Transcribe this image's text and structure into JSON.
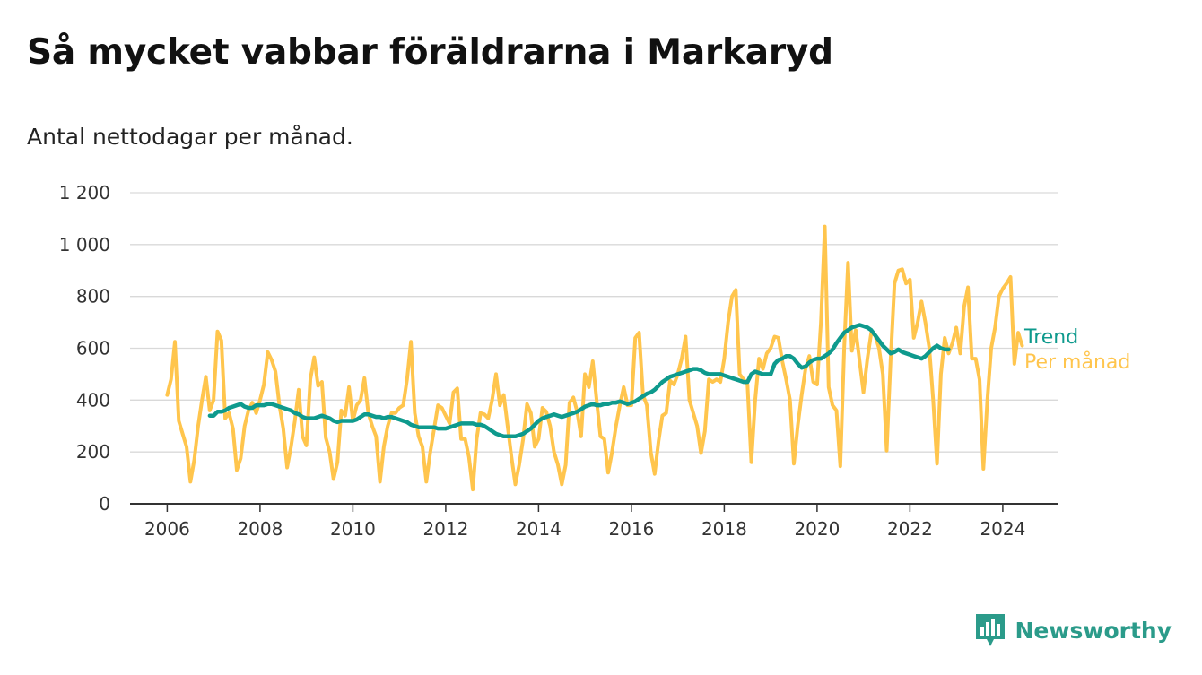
{
  "title": "Så mycket vabbar föräldrarna i Markaryd",
  "subtitle": "Antal nettodagar per månad.",
  "brand": "Newsworthy",
  "colors": {
    "monthly": "#ffc54d",
    "trend": "#0e9a8d",
    "brand": "#2b9b8a",
    "grid": "#d9d9d9",
    "axis": "#333333"
  },
  "icons": {
    "brand_logo": "bar-chart-speech-bubble-icon"
  },
  "chart_data": {
    "type": "line",
    "title": "Så mycket vabbar föräldrarna i Markaryd",
    "subtitle": "Antal nettodagar per månad.",
    "ylim": [
      0,
      1200
    ],
    "xlim": [
      2005.2,
      2025.2
    ],
    "y_ticks": [
      0,
      200,
      400,
      600,
      800,
      1000,
      1200
    ],
    "y_tick_labels": [
      "0",
      "200",
      "400",
      "600",
      "800",
      "1 000",
      "1 200"
    ],
    "x_ticks": [
      2006,
      2008,
      2010,
      2012,
      2014,
      2016,
      2018,
      2020,
      2022,
      2024
    ],
    "x_tick_labels": [
      "2006",
      "2008",
      "2010",
      "2012",
      "2014",
      "2016",
      "2018",
      "2020",
      "2022",
      "2024"
    ],
    "grid": true,
    "legend": "direct labels at right end of lines",
    "series": [
      {
        "name": "Per månad",
        "color": "#ffc54d",
        "start": 2006.0,
        "step_months": 1,
        "values": [
          420,
          480,
          625,
          320,
          270,
          220,
          85,
          170,
          300,
          400,
          490,
          360,
          400,
          665,
          630,
          330,
          350,
          290,
          130,
          175,
          300,
          360,
          390,
          350,
          400,
          460,
          585,
          555,
          510,
          380,
          290,
          140,
          220,
          320,
          440,
          260,
          225,
          480,
          565,
          455,
          470,
          255,
          200,
          95,
          160,
          360,
          340,
          450,
          320,
          380,
          400,
          485,
          350,
          300,
          260,
          85,
          220,
          300,
          350,
          350,
          370,
          380,
          480,
          625,
          350,
          260,
          220,
          85,
          200,
          290,
          380,
          370,
          340,
          310,
          430,
          445,
          250,
          250,
          180,
          55,
          250,
          350,
          345,
          330,
          400,
          500,
          380,
          420,
          300,
          180,
          75,
          150,
          250,
          385,
          350,
          220,
          250,
          370,
          355,
          300,
          200,
          150,
          75,
          150,
          390,
          410,
          355,
          260,
          500,
          450,
          550,
          400,
          260,
          250,
          120,
          200,
          300,
          380,
          450,
          380,
          380,
          640,
          660,
          420,
          380,
          200,
          115,
          240,
          340,
          350,
          475,
          460,
          500,
          560,
          645,
          400,
          350,
          300,
          195,
          280,
          480,
          470,
          480,
          470,
          560,
          700,
          800,
          825,
          500,
          480,
          460,
          160,
          400,
          560,
          520,
          580,
          600,
          645,
          640,
          550,
          480,
          400,
          155,
          300,
          420,
          520,
          570,
          470,
          460,
          700,
          1070,
          450,
          380,
          360,
          145,
          600,
          930,
          590,
          670,
          550,
          430,
          560,
          660,
          650,
          600,
          500,
          205,
          550,
          850,
          900,
          905,
          850,
          865,
          640,
          700,
          780,
          700,
          600,
          400,
          155,
          500,
          640,
          580,
          620,
          680,
          580,
          760,
          835,
          560,
          560,
          480,
          135,
          400,
          600,
          680,
          800,
          830,
          850,
          875,
          540,
          660,
          610
        ]
      },
      {
        "name": "Trend",
        "color": "#0e9a8d",
        "start": 2006.917,
        "step_months": 1,
        "values": [
          340,
          340,
          355,
          355,
          360,
          370,
          375,
          380,
          385,
          375,
          370,
          370,
          380,
          380,
          380,
          385,
          385,
          380,
          375,
          370,
          365,
          360,
          350,
          345,
          335,
          330,
          330,
          330,
          335,
          340,
          335,
          330,
          320,
          315,
          320,
          320,
          320,
          320,
          325,
          335,
          345,
          345,
          340,
          335,
          335,
          330,
          335,
          335,
          330,
          325,
          320,
          315,
          305,
          300,
          295,
          295,
          295,
          295,
          295,
          290,
          290,
          290,
          295,
          300,
          305,
          310,
          310,
          310,
          310,
          305,
          305,
          300,
          290,
          280,
          270,
          265,
          260,
          260,
          260,
          260,
          265,
          270,
          280,
          290,
          305,
          320,
          330,
          335,
          340,
          345,
          340,
          335,
          340,
          345,
          350,
          355,
          365,
          375,
          380,
          385,
          380,
          380,
          385,
          385,
          390,
          390,
          395,
          390,
          385,
          390,
          395,
          405,
          415,
          425,
          430,
          440,
          455,
          470,
          480,
          490,
          495,
          500,
          505,
          510,
          515,
          520,
          520,
          515,
          505,
          500,
          500,
          500,
          500,
          495,
          490,
          485,
          480,
          475,
          470,
          470,
          500,
          510,
          505,
          500,
          500,
          500,
          540,
          555,
          560,
          570,
          570,
          560,
          540,
          525,
          530,
          545,
          555,
          560,
          560,
          570,
          580,
          595,
          620,
          640,
          660,
          670,
          680,
          685,
          690,
          685,
          680,
          670,
          650,
          630,
          610,
          595,
          580,
          585,
          595,
          585,
          580,
          575,
          570,
          565,
          560,
          570,
          585,
          600,
          610,
          600,
          595,
          595
        ]
      }
    ]
  }
}
